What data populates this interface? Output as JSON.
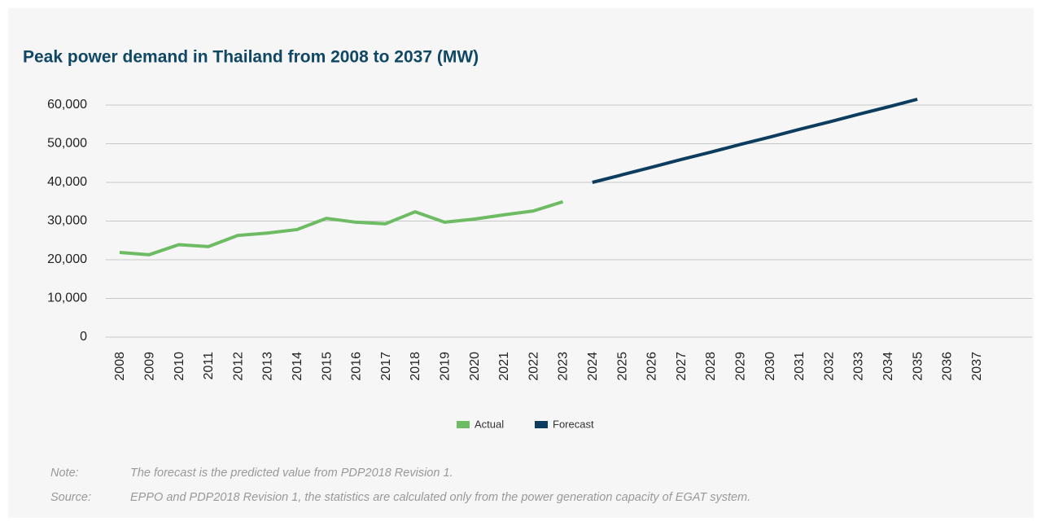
{
  "chart_data": {
    "type": "line",
    "title": "Peak power demand in Thailand from 2008 to 2037 (MW)",
    "categories": [
      "2008",
      "2009",
      "2010",
      "2011",
      "2012",
      "2013",
      "2014",
      "2015",
      "2016",
      "2017",
      "2018",
      "2019",
      "2020",
      "2021",
      "2022",
      "2023",
      "2024",
      "2025",
      "2026",
      "2027",
      "2028",
      "2029",
      "2030",
      "2031",
      "2032",
      "2033",
      "2034",
      "2035",
      "2036",
      "2037"
    ],
    "series": [
      {
        "name": "Actual",
        "color": "#6dbb63",
        "values": [
          21900,
          21300,
          23900,
          23400,
          26300,
          26900,
          27800,
          30700,
          29700,
          29300,
          32400,
          29700,
          30500,
          31600,
          32600,
          35000,
          null,
          null,
          null,
          null,
          null,
          null,
          null,
          null,
          null,
          null,
          null,
          null,
          null,
          null
        ]
      },
      {
        "name": "Forecast",
        "color": "#0d3d5e",
        "values": [
          null,
          null,
          null,
          null,
          null,
          null,
          null,
          null,
          null,
          null,
          null,
          null,
          null,
          null,
          null,
          null,
          40000,
          41950,
          43900,
          45900,
          47800,
          49800,
          51700,
          53700,
          55600,
          57600,
          59500,
          61500,
          null,
          null
        ]
      }
    ],
    "ylim": [
      0,
      60000
    ],
    "yticks": [
      0,
      {
        "value": 10000,
        "label": "10,000"
      },
      {
        "value": 20000,
        "label": "20,000"
      },
      {
        "value": 30000,
        "label": "30,000"
      },
      {
        "value": 40000,
        "label": "40,000"
      },
      {
        "value": 50000,
        "label": "50,000"
      },
      {
        "value": 60000,
        "label": "60,000"
      }
    ],
    "grid": true,
    "legend": "bottom",
    "notes": [
      {
        "label": "Note:",
        "text": "The forecast is the predicted value from PDP2018 Revision 1."
      },
      {
        "label": "Source:",
        "text": "EPPO and PDP2018 Revision 1, the statistics are calculated only from the power generation capacity of EGAT system."
      }
    ]
  }
}
